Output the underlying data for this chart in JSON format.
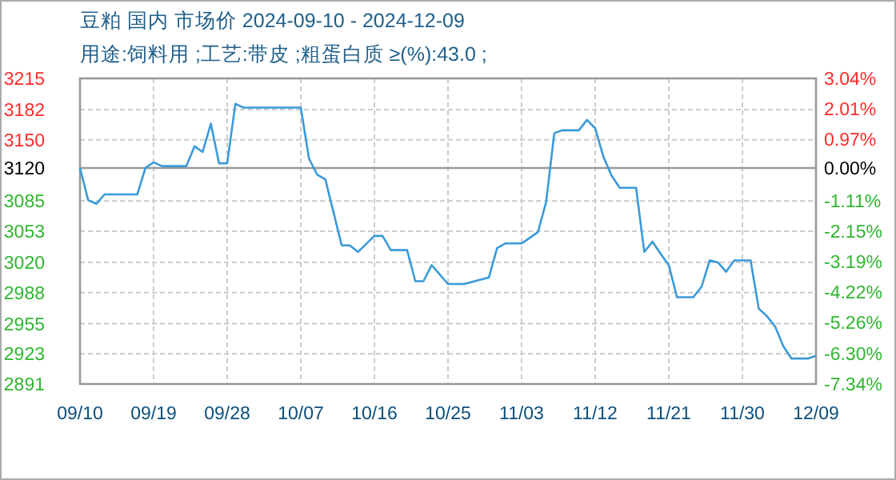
{
  "chart_data": {
    "type": "line",
    "title": "豆粕 国内 市场价 2024-09-10 - 2024-12-09",
    "subtitle": "用途:饲料用 ;工艺:带皮 ;粗蛋白质 ≥(%):43.0 ;",
    "x": [
      "2024-09-10",
      "2024-09-11",
      "2024-09-12",
      "2024-09-13",
      "2024-09-17",
      "2024-09-18",
      "2024-09-19",
      "2024-09-20",
      "2024-09-23",
      "2024-09-24",
      "2024-09-25",
      "2024-09-26",
      "2024-09-27",
      "2024-09-28",
      "2024-09-29",
      "2024-09-30",
      "2024-10-07",
      "2024-10-08",
      "2024-10-09",
      "2024-10-10",
      "2024-10-12",
      "2024-10-13",
      "2024-10-14",
      "2024-10-16",
      "2024-10-17",
      "2024-10-18",
      "2024-10-20",
      "2024-10-21",
      "2024-10-22",
      "2024-10-23",
      "2024-10-25",
      "2024-10-27",
      "2024-10-30",
      "2024-10-31",
      "2024-11-01",
      "2024-11-03",
      "2024-11-05",
      "2024-11-06",
      "2024-11-07",
      "2024-11-08",
      "2024-11-10",
      "2024-11-11",
      "2024-11-12",
      "2024-11-13",
      "2024-11-14",
      "2024-11-15",
      "2024-11-17",
      "2024-11-18",
      "2024-11-19",
      "2024-11-20",
      "2024-11-21",
      "2024-11-22",
      "2024-11-24",
      "2024-11-25",
      "2024-11-26",
      "2024-11-27",
      "2024-11-28",
      "2024-11-29",
      "2024-12-01",
      "2024-12-02",
      "2024-12-03",
      "2024-12-04",
      "2024-12-05",
      "2024-12-06",
      "2024-12-08",
      "2024-12-09"
    ],
    "series": [
      {
        "color": "#3a9ad9",
        "values": [
          3120,
          3086,
          3082,
          3092,
          3092,
          3120,
          3126,
          3122,
          3122,
          3143,
          3137,
          3167,
          3125,
          3125,
          3188,
          3184,
          3184,
          3130,
          3113,
          3108,
          3038,
          3038,
          3031,
          3048,
          3048,
          3033,
          3033,
          3000,
          3000,
          3017,
          2997,
          2997,
          3004,
          3035,
          3040,
          3040,
          3052,
          3084,
          3157,
          3160,
          3160,
          3171,
          3162,
          3132,
          3112,
          3099,
          3099,
          3031,
          3042,
          3029,
          3017,
          2983,
          2983,
          2994,
          3022,
          3020,
          3010,
          3022,
          3022,
          2971,
          2963,
          2952,
          2931,
          2918,
          2918,
          2921
        ]
      }
    ],
    "xlim": [
      "2024-09-10",
      "2024-12-09"
    ],
    "xticks": [
      {
        "value": "2024-09-10",
        "label": "09/10"
      },
      {
        "value": "2024-09-19",
        "label": "09/19"
      },
      {
        "value": "2024-09-28",
        "label": "09/28"
      },
      {
        "value": "2024-10-07",
        "label": "10/07"
      },
      {
        "value": "2024-10-16",
        "label": "10/16"
      },
      {
        "value": "2024-10-25",
        "label": "10/25"
      },
      {
        "value": "2024-11-03",
        "label": "11/03"
      },
      {
        "value": "2024-11-12",
        "label": "11/12"
      },
      {
        "value": "2024-11-21",
        "label": "11/21"
      },
      {
        "value": "2024-11-30",
        "label": "11/30"
      },
      {
        "value": "2024-12-09",
        "label": "12/09"
      }
    ],
    "ylim": [
      2891,
      3215
    ],
    "yticks": [
      3215,
      3182,
      3150,
      3120,
      3085,
      3053,
      3020,
      2988,
      2955,
      2923,
      2891
    ],
    "y2lim": [
      -7.34,
      3.04
    ],
    "y2ticks": [
      {
        "value": 3.04,
        "label": "3.04%"
      },
      {
        "value": 2.01,
        "label": "2.01%"
      },
      {
        "value": 0.97,
        "label": "0.97%"
      },
      {
        "value": 0,
        "label": "0.00%"
      },
      {
        "value": -1.11,
        "label": "-1.11%"
      },
      {
        "value": -2.15,
        "label": "-2.15%"
      },
      {
        "value": -3.19,
        "label": "-3.19%"
      },
      {
        "value": -4.22,
        "label": "-4.22%"
      },
      {
        "value": -5.26,
        "label": "-5.26%"
      },
      {
        "value": -6.3,
        "label": "-6.30%"
      },
      {
        "value": -7.34,
        "label": "-7.34%"
      }
    ],
    "ref_lines": [
      {
        "axis": "y",
        "value": 3120,
        "color": "#999999"
      }
    ],
    "grid": true
  }
}
